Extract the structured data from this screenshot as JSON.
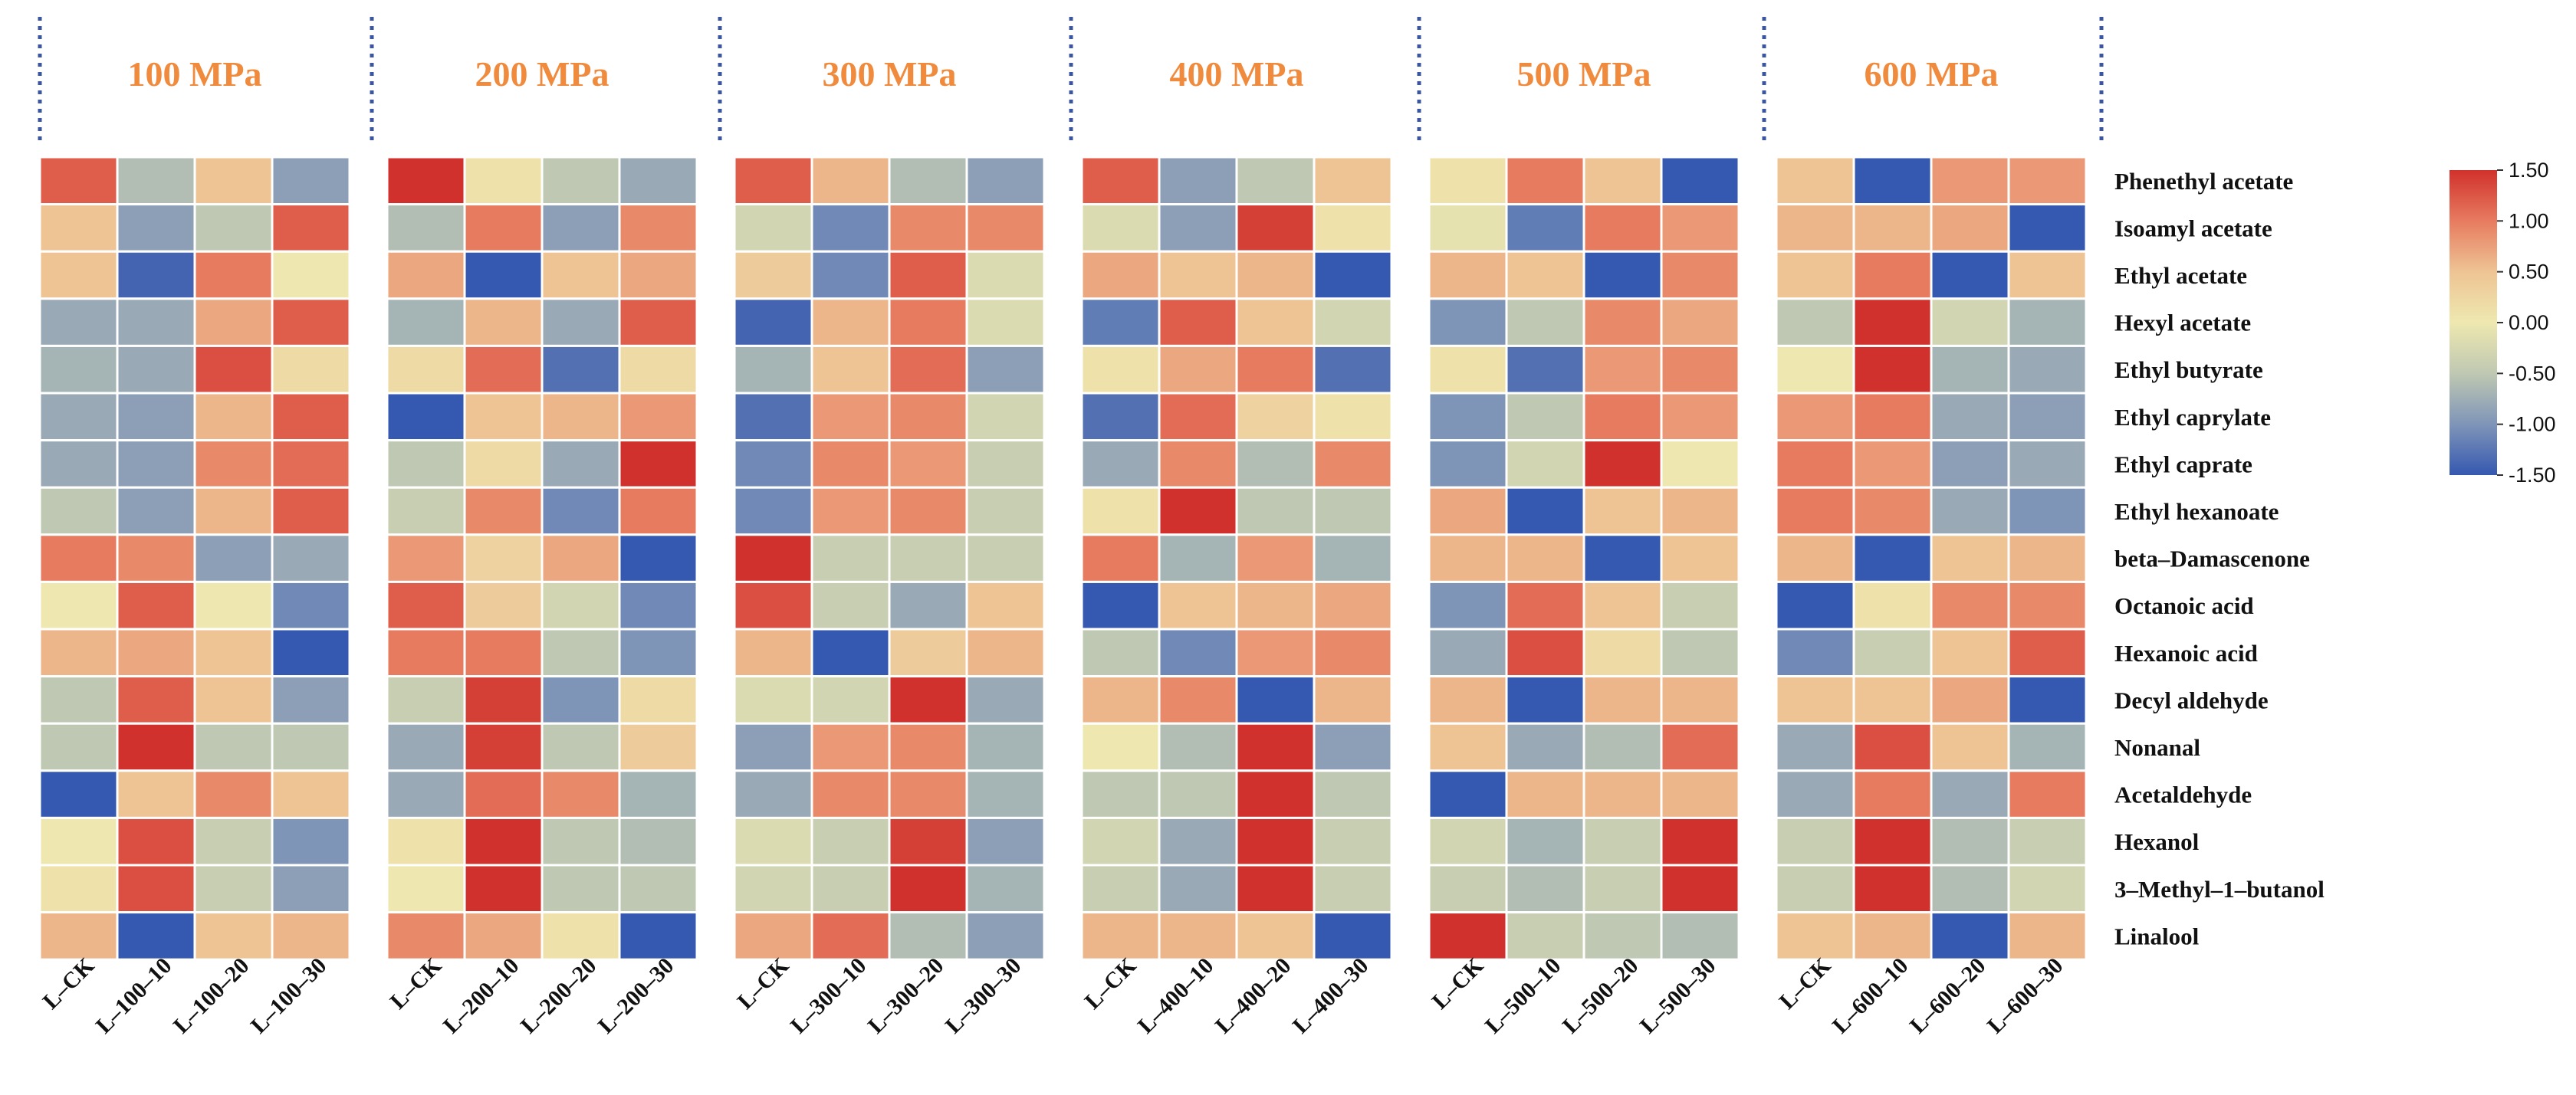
{
  "chart_data": {
    "type": "heatmap",
    "title": "",
    "colorbar": {
      "range": [
        -1.5,
        1.5
      ],
      "ticks": [
        "1.50",
        "1.00",
        "0.50",
        "0.00",
        "-0.50",
        "-1.00",
        "-1.50"
      ],
      "colors": [
        "#d1312c",
        "#e77b60",
        "#eec494",
        "#eee8b0",
        "#bfc8b2",
        "#7f95b8",
        "#3558b0"
      ]
    },
    "rows": [
      "Phenethyl acetate",
      "Isoamyl acetate",
      "Ethyl acetate",
      "Hexyl acetate",
      "Ethyl butyrate",
      "Ethyl caprylate",
      "Ethyl caprate",
      "Ethyl hexanoate",
      "beta–Damascenone",
      "Octanoic acid",
      "Hexanoic acid",
      "Decyl aldehyde",
      "Nonanal",
      "Acetaldehyde",
      "Hexanol",
      "3–Methyl–1–butanol",
      "Linalool"
    ],
    "panels": [
      {
        "title": "100 MPa",
        "columns": [
          "L–CK",
          "L–100–10",
          "L–100–20",
          "L–100–30"
        ],
        "values": [
          [
            1.2,
            -0.6,
            0.5,
            -0.9
          ],
          [
            0.5,
            -0.9,
            -0.5,
            1.2
          ],
          [
            0.5,
            -1.4,
            1.0,
            0.0
          ],
          [
            -0.8,
            -0.8,
            0.7,
            1.2
          ],
          [
            -0.7,
            -0.8,
            1.3,
            0.2
          ],
          [
            -0.8,
            -0.9,
            0.6,
            1.2
          ],
          [
            -0.8,
            -0.9,
            0.9,
            1.1
          ],
          [
            -0.5,
            -0.9,
            0.6,
            1.2
          ],
          [
            1.0,
            0.9,
            -0.9,
            -0.8
          ],
          [
            0.0,
            1.2,
            0.0,
            -1.1
          ],
          [
            0.6,
            0.7,
            0.5,
            -1.5
          ],
          [
            -0.5,
            1.2,
            0.5,
            -0.9
          ],
          [
            -0.5,
            1.5,
            -0.5,
            -0.5
          ],
          [
            -1.5,
            0.5,
            0.9,
            0.5
          ],
          [
            0.0,
            1.3,
            -0.4,
            -1.0
          ],
          [
            0.1,
            1.3,
            -0.4,
            -0.9
          ],
          [
            0.6,
            -1.5,
            0.5,
            0.6
          ]
        ]
      },
      {
        "title": "200 MPa",
        "columns": [
          "L–CK",
          "L–200–10",
          "L–200–20",
          "L–200–30"
        ],
        "values": [
          [
            1.5,
            0.1,
            -0.5,
            -0.8
          ],
          [
            -0.6,
            1.0,
            -0.9,
            0.9
          ],
          [
            0.7,
            -1.5,
            0.5,
            0.7
          ],
          [
            -0.7,
            0.6,
            -0.8,
            1.2
          ],
          [
            0.2,
            1.1,
            -1.3,
            0.2
          ],
          [
            -1.6,
            0.5,
            0.6,
            0.8
          ],
          [
            -0.5,
            0.2,
            -0.8,
            1.5
          ],
          [
            -0.4,
            0.9,
            -1.1,
            1.0
          ],
          [
            0.8,
            0.3,
            0.7,
            -1.5
          ],
          [
            1.2,
            0.4,
            -0.3,
            -1.1
          ],
          [
            1.0,
            1.0,
            -0.5,
            -1.0
          ],
          [
            -0.4,
            1.4,
            -1.0,
            0.2
          ],
          [
            -0.8,
            1.4,
            -0.5,
            0.4
          ],
          [
            -0.8,
            1.1,
            0.9,
            -0.7
          ],
          [
            0.1,
            1.5,
            -0.5,
            -0.6
          ],
          [
            0.0,
            1.5,
            -0.5,
            -0.5
          ],
          [
            0.9,
            0.7,
            0.1,
            -1.5
          ]
        ]
      },
      {
        "title": "300 MPa",
        "columns": [
          "L–CK",
          "L–300–10",
          "L–300–20",
          "L–300–30"
        ],
        "values": [
          [
            1.2,
            0.6,
            -0.6,
            -0.9
          ],
          [
            -0.3,
            -1.1,
            0.9,
            0.9
          ],
          [
            0.4,
            -1.1,
            1.2,
            -0.2
          ],
          [
            -1.4,
            0.6,
            1.0,
            -0.2
          ],
          [
            -0.7,
            0.5,
            1.1,
            -0.9
          ],
          [
            -1.3,
            0.8,
            0.9,
            -0.3
          ],
          [
            -1.1,
            0.9,
            0.8,
            -0.4
          ],
          [
            -1.1,
            0.8,
            0.9,
            -0.4
          ],
          [
            1.6,
            -0.4,
            -0.4,
            -0.4
          ],
          [
            1.3,
            -0.4,
            -0.8,
            0.5
          ],
          [
            0.6,
            -1.5,
            0.4,
            0.6
          ],
          [
            -0.2,
            -0.3,
            1.5,
            -0.8
          ],
          [
            -0.9,
            0.8,
            0.9,
            -0.7
          ],
          [
            -0.8,
            0.9,
            0.9,
            -0.7
          ],
          [
            -0.2,
            -0.4,
            1.4,
            -0.9
          ],
          [
            -0.3,
            -0.4,
            1.5,
            -0.7
          ],
          [
            0.7,
            1.1,
            -0.6,
            -0.9
          ]
        ]
      },
      {
        "title": "400 MPa",
        "columns": [
          "L–CK",
          "L–400–10",
          "L–400–20",
          "L–400–30"
        ],
        "values": [
          [
            1.2,
            -0.9,
            -0.5,
            0.5
          ],
          [
            -0.2,
            -0.9,
            1.4,
            0.1
          ],
          [
            0.7,
            0.5,
            0.6,
            -1.5
          ],
          [
            -1.2,
            1.2,
            0.5,
            -0.3
          ],
          [
            0.1,
            0.7,
            1.0,
            -1.3
          ],
          [
            -1.3,
            1.1,
            0.3,
            0.1
          ],
          [
            -0.8,
            0.9,
            -0.6,
            0.9
          ],
          [
            0.1,
            1.5,
            -0.5,
            -0.5
          ],
          [
            1.0,
            -0.7,
            0.8,
            -0.7
          ],
          [
            -1.5,
            0.5,
            0.6,
            0.7
          ],
          [
            -0.5,
            -1.1,
            0.8,
            0.9
          ],
          [
            0.6,
            0.9,
            -1.5,
            0.6
          ],
          [
            0.0,
            -0.6,
            1.5,
            -0.9
          ],
          [
            -0.5,
            -0.5,
            1.5,
            -0.5
          ],
          [
            -0.3,
            -0.8,
            1.5,
            -0.4
          ],
          [
            -0.4,
            -0.8,
            1.5,
            -0.4
          ],
          [
            0.6,
            0.6,
            0.5,
            -1.5
          ]
        ]
      },
      {
        "title": "500 MPa",
        "columns": [
          "L–CK",
          "L–500–10",
          "L–500–20",
          "L–500–30"
        ],
        "values": [
          [
            0.1,
            1.0,
            0.5,
            -1.5
          ],
          [
            -0.1,
            -1.2,
            1.0,
            0.8
          ],
          [
            0.6,
            0.5,
            -1.5,
            0.9
          ],
          [
            -1.0,
            -0.5,
            0.9,
            0.7
          ],
          [
            0.1,
            -1.3,
            0.8,
            0.9
          ],
          [
            -1.0,
            -0.5,
            1.0,
            0.8
          ],
          [
            -1.0,
            -0.3,
            1.5,
            0.0
          ],
          [
            0.7,
            -1.5,
            0.5,
            0.6
          ],
          [
            0.6,
            0.6,
            -1.5,
            0.5
          ],
          [
            -1.0,
            1.1,
            0.5,
            -0.4
          ],
          [
            -0.8,
            1.3,
            0.2,
            -0.5
          ],
          [
            0.6,
            -1.5,
            0.6,
            0.6
          ],
          [
            0.5,
            -0.8,
            -0.6,
            1.1
          ],
          [
            -1.5,
            0.6,
            0.6,
            0.6
          ],
          [
            -0.3,
            -0.7,
            -0.4,
            1.5
          ],
          [
            -0.4,
            -0.6,
            -0.4,
            1.5
          ],
          [
            1.5,
            -0.4,
            -0.5,
            -0.6
          ]
        ]
      },
      {
        "title": "600 MPa",
        "columns": [
          "L–CK",
          "L–600–10",
          "L–600–20",
          "L–600–30"
        ],
        "values": [
          [
            0.5,
            -1.5,
            0.8,
            0.8
          ],
          [
            0.6,
            0.6,
            0.7,
            -1.5
          ],
          [
            0.5,
            1.0,
            -1.5,
            0.5
          ],
          [
            -0.5,
            1.5,
            -0.3,
            -0.7
          ],
          [
            0.0,
            1.5,
            -0.7,
            -0.8
          ],
          [
            0.8,
            1.0,
            -0.8,
            -0.9
          ],
          [
            1.0,
            0.8,
            -0.9,
            -0.8
          ],
          [
            1.0,
            0.9,
            -0.8,
            -1.0
          ],
          [
            0.6,
            -1.5,
            0.5,
            0.6
          ],
          [
            -1.5,
            0.1,
            0.9,
            0.9
          ],
          [
            -1.1,
            -0.4,
            0.5,
            1.2
          ],
          [
            0.5,
            0.5,
            0.7,
            -1.5
          ],
          [
            -0.8,
            1.3,
            0.5,
            -0.7
          ],
          [
            -0.8,
            1.0,
            -0.8,
            1.0
          ],
          [
            -0.4,
            1.5,
            -0.6,
            -0.4
          ],
          [
            -0.4,
            1.5,
            -0.6,
            -0.3
          ],
          [
            0.5,
            0.6,
            -1.5,
            0.6
          ]
        ]
      }
    ]
  }
}
